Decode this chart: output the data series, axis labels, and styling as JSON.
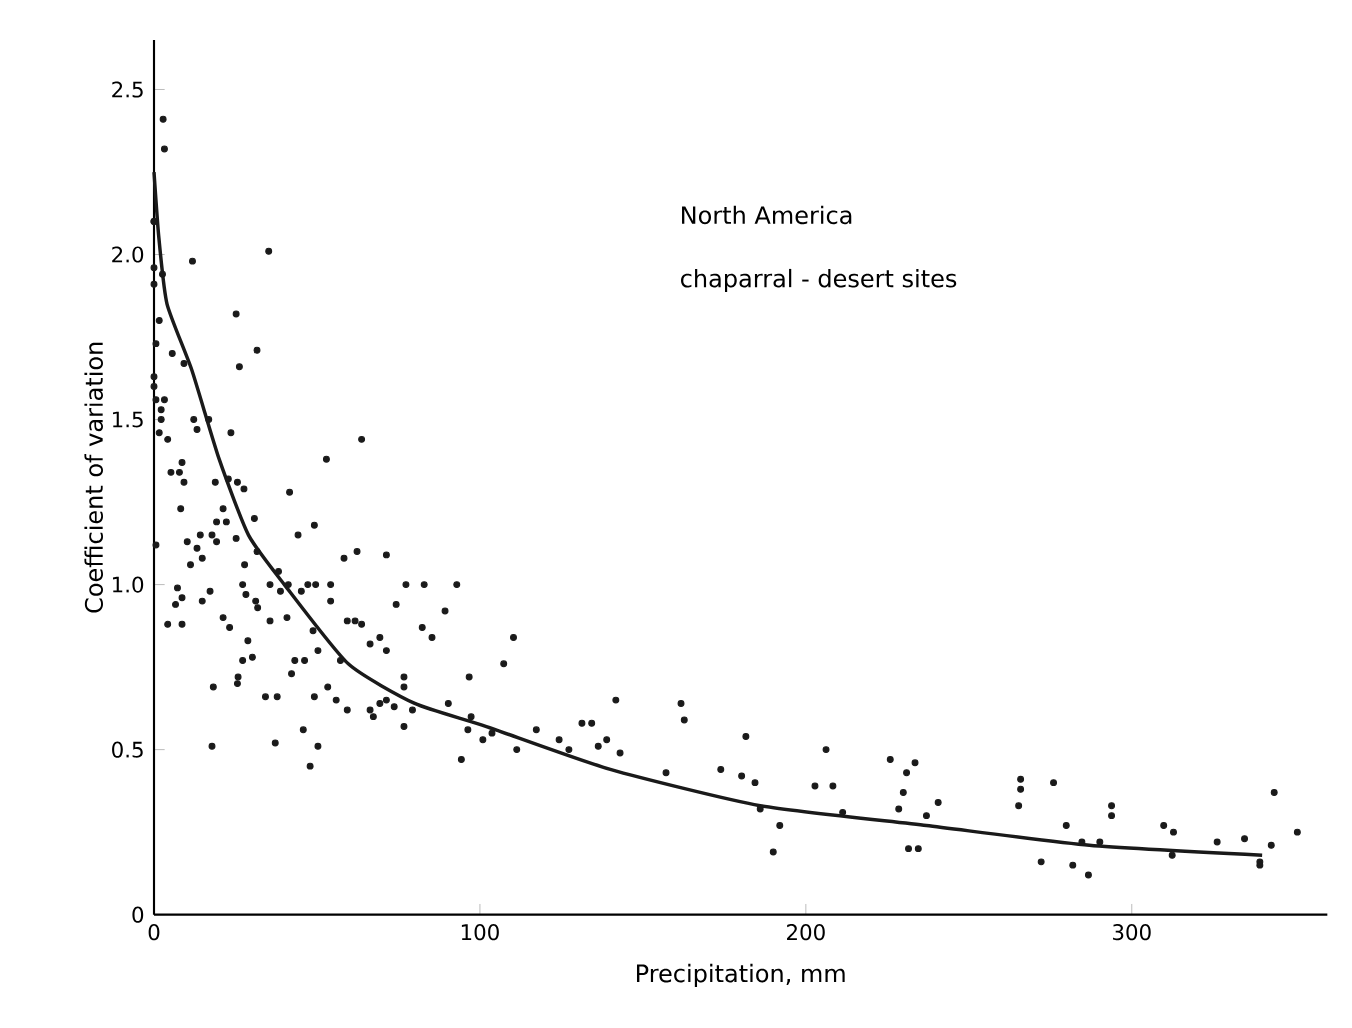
{
  "chart_data": {
    "type": "scatter",
    "xlabel": "Precipitation, mm",
    "ylabel": "Coefficient of variation",
    "annotations": [
      "North America",
      "chaparral - desert sites"
    ],
    "xlim": [
      0,
      360
    ],
    "ylim": [
      0,
      2.65
    ],
    "xticks": [
      0,
      100,
      200,
      300
    ],
    "yticks": [
      0,
      0.5,
      {
        "value": 1,
        "label": "1.0"
      },
      1.5,
      {
        "value": 2,
        "label": "2.0"
      },
      2.5
    ],
    "series": [
      {
        "color": "#1a1a1a",
        "marker": "circle",
        "x": [
          2.8,
          3.2,
          0,
          11.8,
          35.2,
          0,
          0,
          0,
          2.6,
          1.6,
          25.2,
          31.6,
          26.2,
          0.6,
          5.6,
          9.2,
          0,
          0,
          0.6,
          3.2,
          2.2,
          2.2,
          12.2,
          16.8,
          13.2,
          1.6,
          4.2,
          23.6,
          63.7,
          52.9,
          8.6,
          5.2,
          7.8,
          9.2,
          22.8,
          25.6,
          27.6,
          18.8,
          41.6,
          8.2,
          21.2,
          30.8,
          19.2,
          22.2,
          49.2,
          14.2,
          17.8,
          44.2,
          0.6,
          10.2,
          13.2,
          11.2,
          14.8,
          19.2,
          25.2,
          27.8,
          31.6,
          7.2,
          8.6,
          6.6,
          4.2,
          8.6,
          14.8,
          17.2,
          27.2,
          28.2,
          31.2,
          31.8,
          35.6,
          38.2,
          38.8,
          41.2,
          45.2,
          47.2,
          49.6,
          54.2,
          54.2,
          58.3,
          62.3,
          71.3,
          74.3,
          77.3,
          82.9,
          92.9,
          89.3,
          82.3,
          85.3,
          21.2,
          23.2,
          35.6,
          40.8,
          48.8,
          59.3,
          61.7,
          63.7,
          66.3,
          69.3,
          71.3,
          28.8,
          27.2,
          30.2,
          43.2,
          46.2,
          50.3,
          57.2,
          25.8,
          25.6,
          18.2,
          42.2,
          34.2,
          37.8,
          49.2,
          53.3,
          55.9,
          59.3,
          66.3,
          67.3,
          69.3,
          71.3,
          73.7,
          76.7,
          76.7,
          76.7,
          79.3,
          90.3,
          96.7,
          97.3,
          96.3,
          100.9,
          94.3,
          107.3,
          110.3,
          103.7,
          111.3,
          117.3,
          124.3,
          127.3,
          131.3,
          134.3,
          136.3,
          138.9,
          141.7,
          143,
          17.8,
          37.2,
          45.8,
          50.3,
          47.9,
          157.1,
          161.7,
          162.7,
          173.9,
          180.3,
          181.6,
          184.4,
          186,
          192,
          190,
          202.8,
          206.2,
          208.3,
          211.3,
          225.9,
          228.5,
          229.9,
          230.9,
          233.5,
          231.5,
          234.5,
          237,
          240.6,
          265.9,
          265.9,
          265.3,
          276,
          272.2,
          279.9,
          281.9,
          284.7,
          286.7,
          290.2,
          293.8,
          293.8,
          309.8,
          312.8,
          312.4,
          326.2,
          334.6,
          339.3,
          339.3,
          342.8,
          343.7,
          350.8
        ],
        "values": [
          2.41,
          2.32,
          2.1,
          1.98,
          2.01,
          2.1,
          1.96,
          1.91,
          1.94,
          1.8,
          1.82,
          1.71,
          1.66,
          1.73,
          1.7,
          1.67,
          1.63,
          1.6,
          1.56,
          1.56,
          1.53,
          1.5,
          1.5,
          1.5,
          1.47,
          1.46,
          1.44,
          1.46,
          1.44,
          1.38,
          1.37,
          1.34,
          1.34,
          1.31,
          1.32,
          1.31,
          1.29,
          1.31,
          1.28,
          1.23,
          1.23,
          1.2,
          1.19,
          1.19,
          1.18,
          1.15,
          1.15,
          1.15,
          1.12,
          1.13,
          1.11,
          1.06,
          1.08,
          1.13,
          1.14,
          1.06,
          1.1,
          0.99,
          0.96,
          0.94,
          0.88,
          0.88,
          0.95,
          0.98,
          1.0,
          0.97,
          0.95,
          0.93,
          1.0,
          1.04,
          0.98,
          1.0,
          0.98,
          1.0,
          1.0,
          1.0,
          0.95,
          1.08,
          1.1,
          1.09,
          0.94,
          1.0,
          1.0,
          1.0,
          0.92,
          0.87,
          0.84,
          0.9,
          0.87,
          0.89,
          0.9,
          0.86,
          0.89,
          0.89,
          0.88,
          0.82,
          0.84,
          0.8,
          0.83,
          0.77,
          0.78,
          0.77,
          0.77,
          0.8,
          0.77,
          0.72,
          0.7,
          0.69,
          0.73,
          0.66,
          0.66,
          0.66,
          0.69,
          0.65,
          0.62,
          0.62,
          0.6,
          0.64,
          0.65,
          0.63,
          0.72,
          0.69,
          0.57,
          0.62,
          0.64,
          0.72,
          0.6,
          0.56,
          0.53,
          0.47,
          0.76,
          0.84,
          0.55,
          0.5,
          0.56,
          0.53,
          0.5,
          0.58,
          0.58,
          0.51,
          0.53,
          0.65,
          0.49,
          0.51,
          0.52,
          0.56,
          0.51,
          0.45,
          0.43,
          0.64,
          0.59,
          0.44,
          0.42,
          0.54,
          0.4,
          0.32,
          0.27,
          0.19,
          0.39,
          0.5,
          0.39,
          0.31,
          0.47,
          0.32,
          0.37,
          0.43,
          0.46,
          0.2,
          0.2,
          0.3,
          0.34,
          0.41,
          0.38,
          0.33,
          0.4,
          0.16,
          0.27,
          0.15,
          0.22,
          0.12,
          0.22,
          0.33,
          0.3,
          0.27,
          0.25,
          0.18,
          0.22,
          0.23,
          0.16,
          0.15,
          0.21,
          0.37,
          0.25
        ]
      },
      {
        "type": "line",
        "color": "#1a1a1a",
        "marker": "none",
        "line_style": "solid",
        "x": [
          0,
          1.5,
          4,
          11.6,
          20,
          29,
          40,
          59.6,
          80,
          102,
          140,
          186,
          237,
          287,
          340
        ],
        "values": [
          2.25,
          2.05,
          1.85,
          1.65,
          1.38,
          1.15,
          1.0,
          0.76,
          0.64,
          0.57,
          0.44,
          0.33,
          0.27,
          0.21,
          0.18
        ]
      }
    ]
  }
}
